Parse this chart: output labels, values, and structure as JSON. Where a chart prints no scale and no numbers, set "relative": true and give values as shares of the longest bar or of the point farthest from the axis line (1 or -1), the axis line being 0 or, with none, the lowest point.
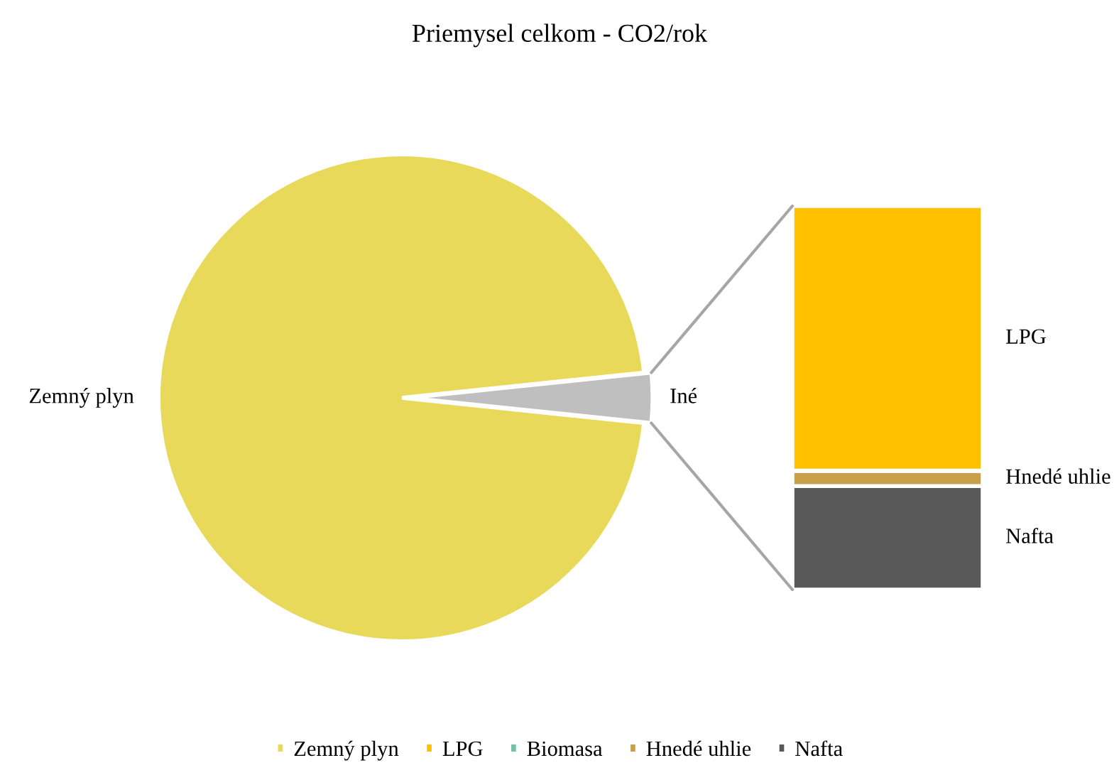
{
  "chart_data": [
    {
      "type": "pie",
      "title": "Priemysel celkom - CO2/rok",
      "categories": [
        "Zemný plyn",
        "Iné"
      ],
      "values": [
        96.7,
        3.3
      ],
      "colors": [
        "#e9d95a",
        "#bfbfbf"
      ],
      "legend": "bottom"
    },
    {
      "type": "bar",
      "stacked": true,
      "relative": true,
      "categories": [
        null
      ],
      "legend": "bottom",
      "series": [
        {
          "name": "Nafta",
          "color": "#595959",
          "values": [
            0.27
          ]
        },
        {
          "name": "Hnedé uhlie",
          "color": "#c9a04a",
          "values": [
            0.04
          ]
        },
        {
          "name": "Biomasa",
          "color": "#70c4a4",
          "values": [
            0.0
          ]
        },
        {
          "name": "LPG",
          "color": "#ffc000",
          "values": [
            0.69
          ]
        }
      ]
    }
  ]
}
